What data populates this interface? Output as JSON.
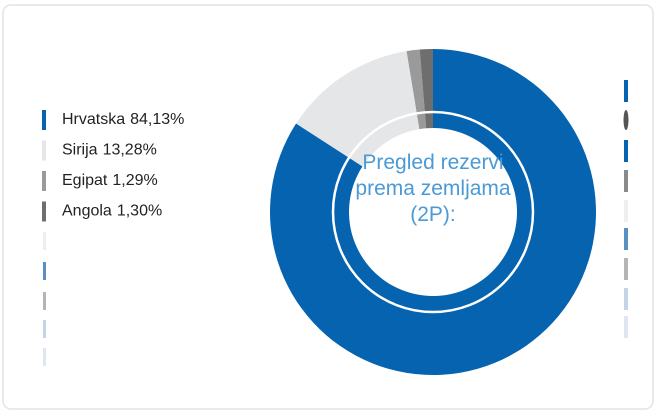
{
  "chart_data": {
    "type": "pie",
    "title": "Pregled rezervi prema zemljama (2P):",
    "categories": [
      "Hrvatska",
      "Sirija",
      "Egipat",
      "Angola"
    ],
    "values": [
      84.13,
      13.28,
      1.29,
      1.3
    ],
    "value_labels": [
      "84,13%",
      "13,28%",
      "1,29%",
      "1,30%"
    ],
    "colors": [
      "#0563b0",
      "#e4e6e8",
      "#9a9a9a",
      "#6e6e6e"
    ]
  }
}
